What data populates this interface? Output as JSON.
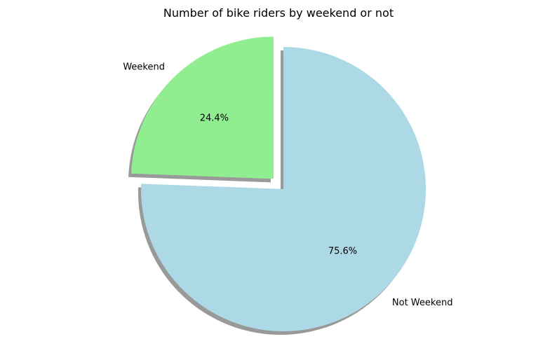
{
  "chart_data": {
    "type": "pie",
    "title": "Number of bike riders by weekend or not",
    "categories": [
      "Weekend",
      "Not Weekend"
    ],
    "values": [
      24.4,
      75.6
    ],
    "percent_labels": [
      "24.4%",
      "75.6%"
    ],
    "colors": [
      "#90ee90",
      "#add8e6"
    ],
    "explode": [
      0.1,
      0
    ],
    "shadow": true,
    "start_angle_deg": 90,
    "direction": "counterclockwise"
  }
}
